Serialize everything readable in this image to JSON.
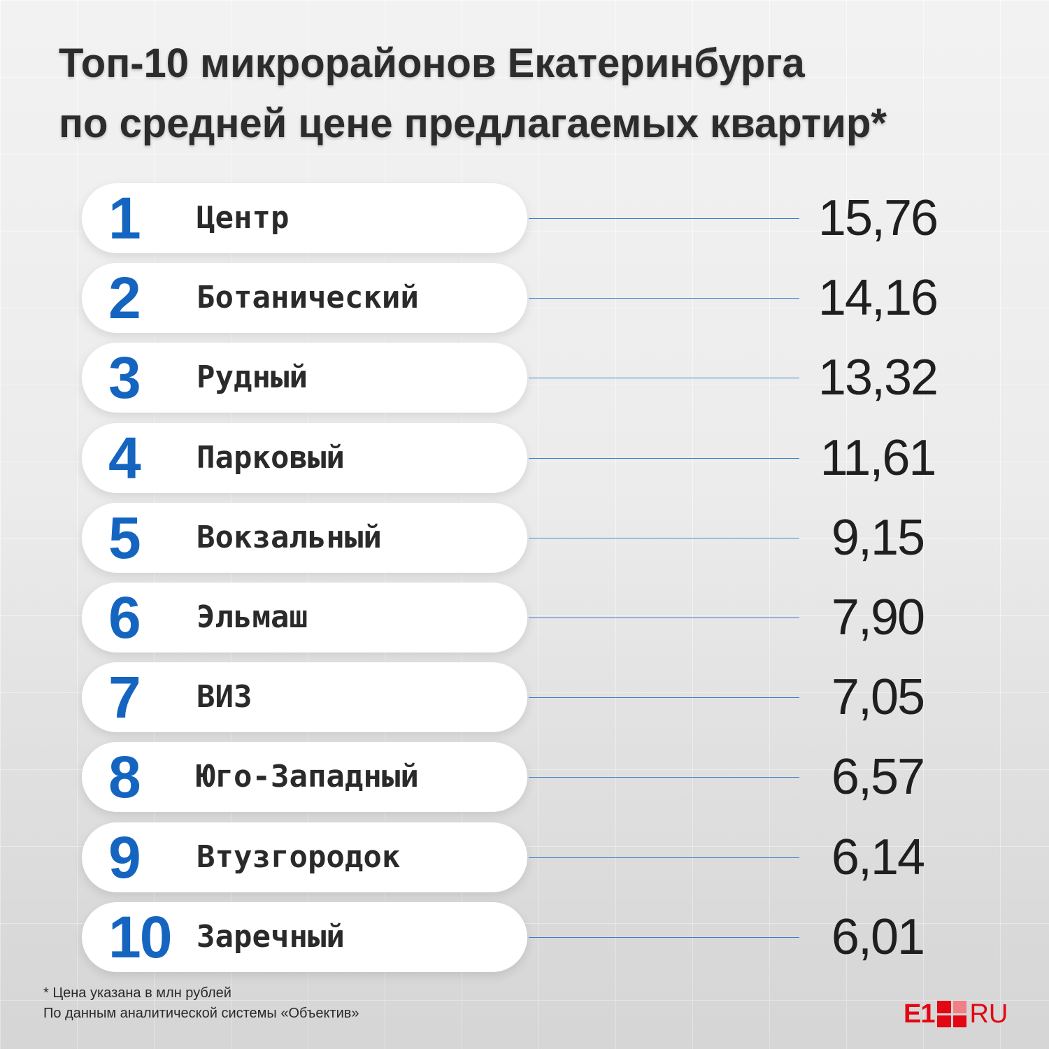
{
  "title": {
    "line1": "Топ-10 микрорайонов Екатеринбурга",
    "line2": "по средней цене предлагаемых квартир*"
  },
  "colors": {
    "rank": "#1565c0",
    "connector": "#3d7fc8",
    "pill": "#ffffff",
    "brand": "#e30613"
  },
  "chart_data": {
    "type": "table",
    "title": "Топ-10 микрорайонов Екатеринбурга по средней цене предлагаемых квартир*",
    "columns": [
      "rank",
      "district",
      "price"
    ],
    "rows": [
      {
        "rank": "1",
        "district": "Центр",
        "price": "15,76"
      },
      {
        "rank": "2",
        "district": "Ботанический",
        "price": "14,16"
      },
      {
        "rank": "3",
        "district": "Рудный",
        "price": "13,32"
      },
      {
        "rank": "4",
        "district": "Парковый",
        "price": "11,61"
      },
      {
        "rank": "5",
        "district": "Вокзальный",
        "price": "9,15"
      },
      {
        "rank": "6",
        "district": "Эльмаш",
        "price": "7,90"
      },
      {
        "rank": "7",
        "district": "ВИЗ",
        "price": "7,05"
      },
      {
        "rank": "8",
        "district": "Юго-Западный",
        "price": "6,57"
      },
      {
        "rank": "9",
        "district": "Втузгородок",
        "price": "6,14"
      },
      {
        "rank": "10",
        "district": "Заречный",
        "price": "6,01"
      }
    ]
  },
  "footnote": {
    "unit_note": "* Цена указана в млн рублей",
    "source": "По данным аналитической системы «Объектив»"
  },
  "logo": {
    "left": "E1",
    "right": "RU"
  }
}
